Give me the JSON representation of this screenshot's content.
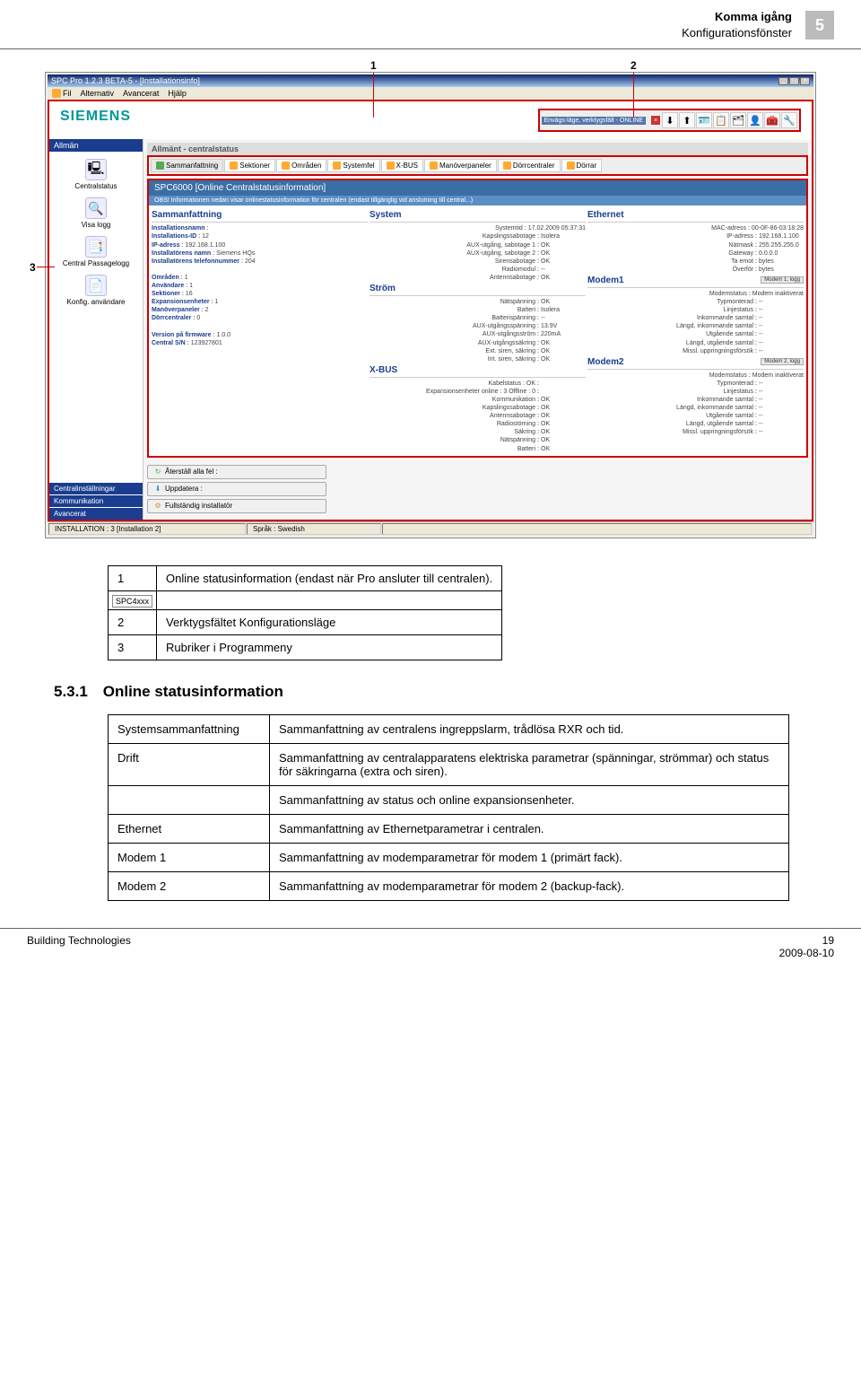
{
  "page": {
    "header_title": "Komma igång",
    "header_sub": "Konfigurationsfönster",
    "page_number": "5",
    "footer_left": "Building Technologies",
    "footer_page": "19",
    "footer_date": "2009-08-10"
  },
  "callouts": {
    "c1": "1",
    "c2": "2",
    "c3": "3"
  },
  "window": {
    "title": "SPC Pro 1.2.3 BETA-5 - [Installationsinfo]",
    "menu": [
      "Fil",
      "Alternativ",
      "Avancerat",
      "Hjälp"
    ],
    "siemens": "SIEMENS",
    "toolbox_label": "Envägs-läge, verktygsfält - ONLINE",
    "statusbar": {
      "left": "INSTALLATION : 3 [Installation 2]",
      "mid": "Språk : Swedish"
    }
  },
  "sidebar": {
    "header": "Allmän",
    "items": [
      {
        "icon": "🖳",
        "label": "Centralstatus"
      },
      {
        "icon": "🔍",
        "label": "Visa logg"
      },
      {
        "icon": "📑",
        "label": "Central Passagelogg"
      },
      {
        "icon": "📄",
        "label": "Konfig. användare"
      }
    ],
    "footer": [
      "Centralinställningar",
      "Kommunikation",
      "Avancerat"
    ]
  },
  "content": {
    "title_gray": "Allmänt - centralstatus",
    "tabs": [
      "Sammanfattning",
      "Sektioner",
      "Områden",
      "Systemfel",
      "X-BUS",
      "Manöverpaneler",
      "Dörrcentraler",
      "Dörrar"
    ],
    "sp_title": "SPC6000 [Online Centralstatusinformation]",
    "sp_note": "OBS! Informationen nedan visar onlinestatusinformation för centralen (endast tillgänglig vid anslutning till central...)",
    "sections": {
      "summary": {
        "title": "Sammanfattning",
        "rows": [
          [
            "Installationsnamn",
            "",
            true
          ],
          [
            "Installations-ID",
            "12",
            true
          ],
          [
            "IP-adress",
            "192.168.1.100",
            true
          ],
          [
            "Installatörens namn",
            "Siemens HQs",
            true
          ],
          [
            "Installatörens telefonnummer",
            "204",
            true
          ],
          [
            "",
            "",
            false
          ],
          [
            "Områden",
            "1",
            true
          ],
          [
            "Användare",
            "1",
            true
          ],
          [
            "Sektioner",
            "16",
            true
          ],
          [
            "Expansionsenheter",
            "1",
            true
          ],
          [
            "Manöverpaneler",
            "2",
            true
          ],
          [
            "Dörrcentraler",
            "0",
            true
          ],
          [
            "",
            "",
            false
          ],
          [
            "Version på firmware",
            "1.0.0",
            true
          ],
          [
            "Central S/N",
            "123927801",
            true
          ]
        ]
      },
      "system": {
        "title": "System",
        "rows": [
          [
            "Systemtid",
            "17.02.2009 05:37:31"
          ],
          [
            "Kapslingssabotage",
            "Isolera"
          ],
          [
            "AUX-utgång, sabotage 1",
            "OK"
          ],
          [
            "AUX-utgång, sabotage 2",
            "OK"
          ],
          [
            "Sirensabotage",
            "OK"
          ],
          [
            "Radiomodul",
            "--"
          ],
          [
            "Antennsabotage",
            "OK"
          ]
        ]
      },
      "ethernet": {
        "title": "Ethernet",
        "rows": [
          [
            "MAC-adress",
            "00-0F-86-03:18:28"
          ],
          [
            "IP-adress",
            "192.168.1.100"
          ],
          [
            "Nätmask",
            "255.255.255.0"
          ],
          [
            "Gateway",
            "0.0.0.0"
          ],
          [
            "Ta emot",
            "bytes"
          ],
          [
            "Överför",
            "bytes"
          ]
        ]
      },
      "strom": {
        "title": "Ström",
        "rows": [
          [
            "Nätspänning",
            "OK"
          ],
          [
            "Batteri",
            "Isolera"
          ],
          [
            "Batterispänning",
            "--"
          ],
          [
            "AUX-utgångsspänning",
            "13.9V"
          ],
          [
            "AUX-utgångsström",
            "220mA"
          ],
          [
            "AUX-utgångssäkring",
            "OK"
          ],
          [
            "Ext. siren, säkring",
            "OK"
          ],
          [
            "Int. siren, säkring",
            "OK"
          ]
        ]
      },
      "modem1": {
        "title": "Modem1",
        "btn": "Modem 1, logg",
        "rows": [
          [
            "Modemstatus",
            "Modem inaktiverat"
          ],
          [
            "Typmonterad",
            "--"
          ],
          [
            "Linjestatus",
            "--"
          ],
          [
            "Inkommande samtal",
            "--"
          ],
          [
            "Längd, inkommande samtal",
            "--"
          ],
          [
            "Utgående samtal",
            "--"
          ],
          [
            "Längd, utgående samtal",
            "--"
          ],
          [
            "Missl. uppringningsförsök",
            "--"
          ]
        ]
      },
      "xbus": {
        "title": "X-BUS",
        "rows": [
          [
            "Kabelstatus :   OK",
            ""
          ],
          [
            "Expansionsenheter online :   3      Offline :   0",
            ""
          ],
          [
            "Kommunikation",
            "OK"
          ],
          [
            "Kapslingssabotage",
            "OK"
          ],
          [
            "Antennsabotage",
            "OK"
          ],
          [
            "Radiostörning",
            "OK"
          ],
          [
            "Säkring",
            "OK"
          ],
          [
            "Nätspänning",
            "OK"
          ],
          [
            "Batteri",
            "OK"
          ]
        ]
      },
      "modem2": {
        "title": "Modem2",
        "btn": "Modem 2, logg",
        "rows": [
          [
            "Modemstatus",
            "Modem inaktiverat"
          ],
          [
            "Typmonterad",
            "--"
          ],
          [
            "Linjestatus",
            "--"
          ],
          [
            "Inkommande samtal",
            "--"
          ],
          [
            "Längd, inkommande samtal",
            "--"
          ],
          [
            "Utgående samtal",
            "--"
          ],
          [
            "Längd, utgående samtal",
            "--"
          ],
          [
            "Missl. uppringningsförsök",
            "--"
          ]
        ]
      }
    },
    "buttons": [
      {
        "icon": "↻",
        "color": "#5a5",
        "label": "Återställ alla fel :"
      },
      {
        "icon": "⬇",
        "color": "#39c",
        "label": "Uppdatera :"
      },
      {
        "icon": "⚙",
        "color": "#c93",
        "label": "Fullständig installatör"
      }
    ]
  },
  "desc_table": {
    "r1": {
      "num": "1",
      "icon": "SPC4xxx",
      "text": "Online statusinformation (endast när  Pro ansluter till centralen)."
    },
    "r2": {
      "num": "2",
      "text": "Verktygsfältet Konfigurationsläge"
    },
    "r3": {
      "num": "3",
      "text": "Rubriker i Programmeny"
    }
  },
  "section": {
    "num": "5.3.1",
    "title": "Online statusinformation"
  },
  "info_table": [
    {
      "key": "Systemsammanfattning",
      "val": "Sammanfattning av centralens ingreppslarm, trådlösa RXR och tid."
    },
    {
      "key": "Drift",
      "val": "Sammanfattning av centralapparatens elektriska parametrar (spänningar, strömmar) och status för säkringarna (extra och siren)."
    },
    {
      "key": "",
      "val": "Sammanfattning av  status och online expansionsenheter."
    },
    {
      "key": "Ethernet",
      "val": "Sammanfattning av Ethernetparametrar i centralen."
    },
    {
      "key": "Modem 1",
      "val": "Sammanfattning av modemparametrar för modem 1 (primärt fack)."
    },
    {
      "key": "Modem 2",
      "val": "Sammanfattning av modemparametrar för modem 2 (backup-fack)."
    }
  ],
  "toolbox_icons": [
    "⬇",
    "⬆",
    "🪪",
    "📋",
    "🗂",
    "👤",
    "🧰",
    "🔧"
  ]
}
